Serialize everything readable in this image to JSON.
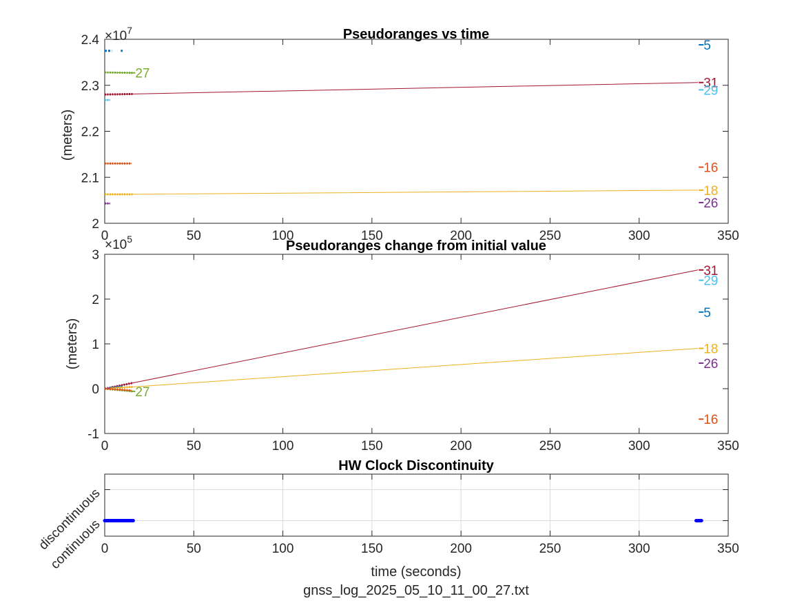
{
  "footer": "gnss_log_2025_05_10_11_00_27.txt",
  "colors": {
    "5": "#0072BD",
    "16": "#D95319",
    "18": "#EDB120",
    "26": "#7E2F8E",
    "27": "#77AC30",
    "29": "#4DBEEE",
    "31": "#A2142F",
    "clock": "#0000FF"
  },
  "chart_data": [
    {
      "type": "line",
      "title": "Pseudoranges vs time",
      "xlabel": "",
      "ylabel": "(meters)",
      "xlim": [
        0,
        350
      ],
      "ylim": [
        20000000,
        24000000
      ],
      "xticks": [
        "0",
        "50",
        "100",
        "150",
        "200",
        "250",
        "300",
        "350"
      ],
      "yticks": [
        "2",
        "2.1",
        "2.2",
        "2.3",
        "2.4"
      ],
      "exponent": "×10",
      "exponent_power": "7",
      "series": [
        {
          "name": "5",
          "x": [
            0,
            4,
            9,
            10
          ],
          "y": [
            23750000,
            23750000,
            23750000,
            23750000
          ],
          "segments": [
            [
              0,
              4
            ],
            [
              9,
              10
            ]
          ],
          "label_x": 335,
          "label_y": 23880000
        },
        {
          "name": "31",
          "x": [
            0,
            16,
            333
          ],
          "y": [
            22800000,
            22810000,
            23060000
          ],
          "label_x": 335,
          "label_y": 23060000
        },
        {
          "name": "29",
          "x": [
            0,
            3
          ],
          "y": [
            22680000,
            22680000
          ],
          "label_x": 335,
          "label_y": 22900000
        },
        {
          "name": "27",
          "x": [
            0,
            15.5
          ],
          "y": [
            23280000,
            23270000
          ],
          "label_x": 16,
          "label_y": 23270000
        },
        {
          "name": "16",
          "x": [
            0,
            15
          ],
          "y": [
            21300000,
            21300000
          ],
          "label_x": 335,
          "label_y": 21220000
        },
        {
          "name": "18",
          "x": [
            0,
            16,
            333
          ],
          "y": [
            20630000,
            20630000,
            20720000
          ],
          "label_x": 335,
          "label_y": 20720000
        },
        {
          "name": "26",
          "x": [
            0,
            3
          ],
          "y": [
            20430000,
            20430000
          ],
          "label_x": 335,
          "label_y": 20450000
        }
      ]
    },
    {
      "type": "line",
      "title": "Pseudoranges change from initial value",
      "xlabel": "",
      "ylabel": "(meters)",
      "xlim": [
        0,
        350
      ],
      "ylim": [
        -100000,
        300000
      ],
      "xticks": [
        "0",
        "50",
        "100",
        "150",
        "200",
        "250",
        "300",
        "350"
      ],
      "yticks": [
        "-1",
        "0",
        "1",
        "2",
        "3"
      ],
      "exponent": "×10",
      "exponent_power": "5",
      "series": [
        {
          "name": "31",
          "x": [
            0,
            16,
            333
          ],
          "y": [
            0,
            13000,
            265000
          ],
          "label_x": 335,
          "label_y": 265000
        },
        {
          "name": "29",
          "x": [
            0,
            3
          ],
          "y": [
            0,
            2000
          ],
          "label_x": 335,
          "label_y": 242000
        },
        {
          "name": "5",
          "x": [
            0,
            10
          ],
          "y": [
            0,
            5000
          ],
          "label_x": 335,
          "label_y": 171000
        },
        {
          "name": "18",
          "x": [
            0,
            16,
            333
          ],
          "y": [
            0,
            4000,
            90000
          ],
          "label_x": 335,
          "label_y": 90000
        },
        {
          "name": "26",
          "x": [
            0,
            3
          ],
          "y": [
            0,
            1000
          ],
          "label_x": 335,
          "label_y": 57000
        },
        {
          "name": "27",
          "x": [
            0,
            15.5
          ],
          "y": [
            0,
            -6000
          ],
          "label_x": 16,
          "label_y": -6000
        },
        {
          "name": "16",
          "x": [
            0,
            15
          ],
          "y": [
            0,
            -4000
          ],
          "label_x": 335,
          "label_y": -68000
        }
      ]
    },
    {
      "type": "scatter",
      "title": "HW Clock Discontinuity",
      "xlabel": "time (seconds)",
      "ylabel": "",
      "xlim": [
        0,
        350
      ],
      "ylim": [
        -0.5,
        1.5
      ],
      "grid": true,
      "xticks": [
        "0",
        "50",
        "100",
        "150",
        "200",
        "250",
        "300",
        "350"
      ],
      "yticks": [
        "continuous",
        "discontinuous"
      ],
      "series": [
        {
          "x": [
            0,
            16
          ],
          "y": [
            0,
            0
          ]
        },
        {
          "x": [
            332,
            335
          ],
          "y": [
            0,
            0
          ]
        }
      ]
    }
  ]
}
